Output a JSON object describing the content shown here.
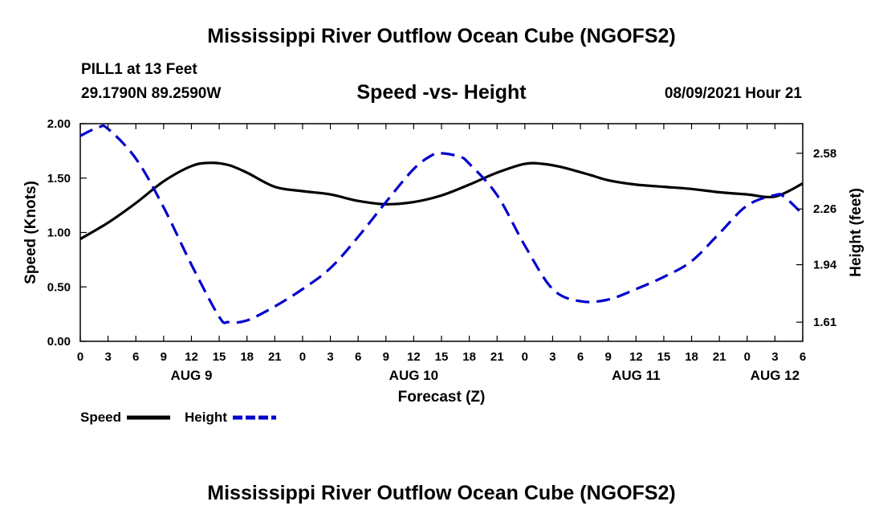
{
  "header": {
    "title": "Mississippi River Outflow Ocean Cube (NGOFS2)",
    "station": "PILL1 at 13 Feet",
    "coords": "29.1790N  89.2590W",
    "subtitle": "Speed -vs- Height",
    "datetime": "08/09/2021 Hour 21"
  },
  "footer": {
    "title": "Mississippi River Outflow Ocean Cube (NGOFS2)"
  },
  "colors": {
    "speed": "#000000",
    "height": "#0000cc"
  },
  "chart_data": {
    "type": "line",
    "title": "Speed -vs- Height",
    "xlabel": "Forecast (Z)",
    "ylabel": "Speed (Knots)",
    "y2label": "Height (feet)",
    "xlim": [
      0,
      78
    ],
    "ylim": [
      0,
      2.0
    ],
    "y2lim": [
      1.5,
      2.75
    ],
    "grid": false,
    "legend_position": "bottom-left",
    "x_ticks": [
      0,
      3,
      6,
      9,
      12,
      15,
      18,
      21,
      24,
      27,
      30,
      33,
      36,
      39,
      42,
      45,
      48,
      51,
      54,
      57,
      60,
      63,
      66,
      69,
      72,
      75,
      78
    ],
    "x_tick_labels": [
      "0",
      "3",
      "6",
      "9",
      "12",
      "15",
      "18",
      "21",
      "0",
      "3",
      "6",
      "9",
      "12",
      "15",
      "18",
      "21",
      "0",
      "3",
      "6",
      "9",
      "12",
      "15",
      "18",
      "21",
      "0",
      "3",
      "6"
    ],
    "day_labels": [
      {
        "x": 12,
        "label": "AUG 9"
      },
      {
        "x": 36,
        "label": "AUG 10"
      },
      {
        "x": 60,
        "label": "AUG 11"
      },
      {
        "x": 75,
        "label": "AUG 12"
      }
    ],
    "y_ticks": [
      0.0,
      0.5,
      1.0,
      1.5,
      2.0
    ],
    "y_tick_labels": [
      "0.00",
      "0.50",
      "1.00",
      "1.50",
      "2.00"
    ],
    "y2_ticks": [
      1.61,
      1.94,
      2.26,
      2.58
    ],
    "y2_tick_labels": [
      "1.61",
      "1.94",
      "2.26",
      "2.58"
    ],
    "series": [
      {
        "name": "Speed",
        "axis": "left",
        "style": "solid",
        "x": [
          0,
          3,
          6,
          9,
          12,
          14,
          16,
          18,
          21,
          24,
          27,
          30,
          33,
          36,
          39,
          42,
          45,
          48,
          50,
          52,
          55,
          57,
          60,
          63,
          66,
          69,
          72,
          75,
          78
        ],
        "values": [
          0.94,
          1.09,
          1.27,
          1.47,
          1.61,
          1.64,
          1.62,
          1.55,
          1.42,
          1.38,
          1.35,
          1.29,
          1.26,
          1.28,
          1.34,
          1.44,
          1.55,
          1.63,
          1.63,
          1.6,
          1.53,
          1.48,
          1.44,
          1.42,
          1.4,
          1.37,
          1.35,
          1.33,
          1.45
        ]
      },
      {
        "name": "Height",
        "axis": "right",
        "style": "dashed",
        "x": [
          0,
          2,
          3,
          6,
          9,
          12,
          15,
          16,
          18,
          21,
          24,
          27,
          30,
          33,
          36,
          38,
          39,
          41,
          42,
          45,
          48,
          51,
          54,
          57,
          60,
          63,
          66,
          69,
          72,
          75,
          76,
          78
        ],
        "values": [
          2.68,
          2.73,
          2.72,
          2.55,
          2.27,
          1.94,
          1.64,
          1.61,
          1.62,
          1.7,
          1.8,
          1.92,
          2.1,
          2.3,
          2.49,
          2.57,
          2.58,
          2.56,
          2.52,
          2.34,
          2.05,
          1.8,
          1.73,
          1.74,
          1.8,
          1.87,
          1.96,
          2.12,
          2.28,
          2.34,
          2.33,
          2.23
        ]
      }
    ]
  }
}
